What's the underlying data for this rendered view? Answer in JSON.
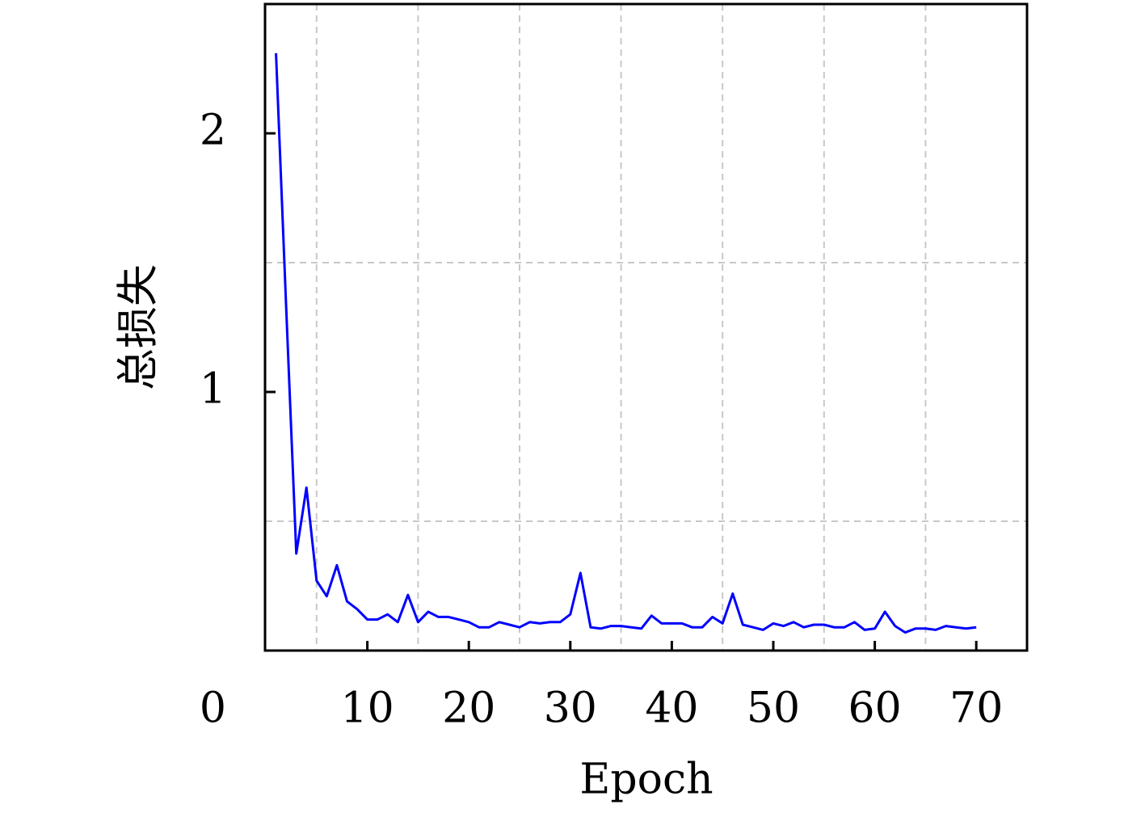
{
  "chart_data": {
    "type": "line",
    "xlabel": "Epoch",
    "ylabel": "总损失",
    "x": [
      1,
      2,
      3,
      4,
      5,
      6,
      7,
      8,
      9,
      10,
      11,
      12,
      13,
      14,
      15,
      16,
      17,
      18,
      19,
      20,
      21,
      22,
      23,
      24,
      25,
      26,
      27,
      28,
      29,
      30,
      31,
      32,
      33,
      34,
      35,
      36,
      37,
      38,
      39,
      40,
      41,
      42,
      43,
      44,
      45,
      46,
      47,
      48,
      49,
      50,
      51,
      52,
      53,
      54,
      55,
      56,
      57,
      58,
      59,
      60,
      61,
      62,
      63,
      64,
      65,
      66,
      67,
      68,
      69,
      70
    ],
    "values": [
      2.31,
      1.33,
      0.375,
      0.63,
      0.27,
      0.21,
      0.33,
      0.19,
      0.16,
      0.12,
      0.12,
      0.14,
      0.11,
      0.215,
      0.11,
      0.15,
      0.13,
      0.13,
      0.12,
      0.11,
      0.09,
      0.09,
      0.11,
      0.1,
      0.09,
      0.11,
      0.105,
      0.11,
      0.11,
      0.14,
      0.3,
      0.09,
      0.085,
      0.095,
      0.095,
      0.09,
      0.085,
      0.135,
      0.105,
      0.105,
      0.105,
      0.09,
      0.09,
      0.13,
      0.105,
      0.22,
      0.1,
      0.09,
      0.08,
      0.105,
      0.095,
      0.11,
      0.09,
      0.1,
      0.1,
      0.09,
      0.09,
      0.11,
      0.08,
      0.085,
      0.15,
      0.095,
      0.07,
      0.085,
      0.085,
      0.08,
      0.095,
      0.09,
      0.085,
      0.09
    ],
    "color": "#0000ff",
    "xlim": [
      0,
      75
    ],
    "ylim": [
      0,
      2.5
    ],
    "xticks": [
      10,
      20,
      30,
      40,
      50,
      60,
      70
    ],
    "yticks": [
      0,
      1,
      2
    ],
    "xgrid": [
      5,
      15,
      25,
      35,
      45,
      55,
      65
    ],
    "ygrid": [
      0.5,
      1.5
    ],
    "grid": true
  }
}
